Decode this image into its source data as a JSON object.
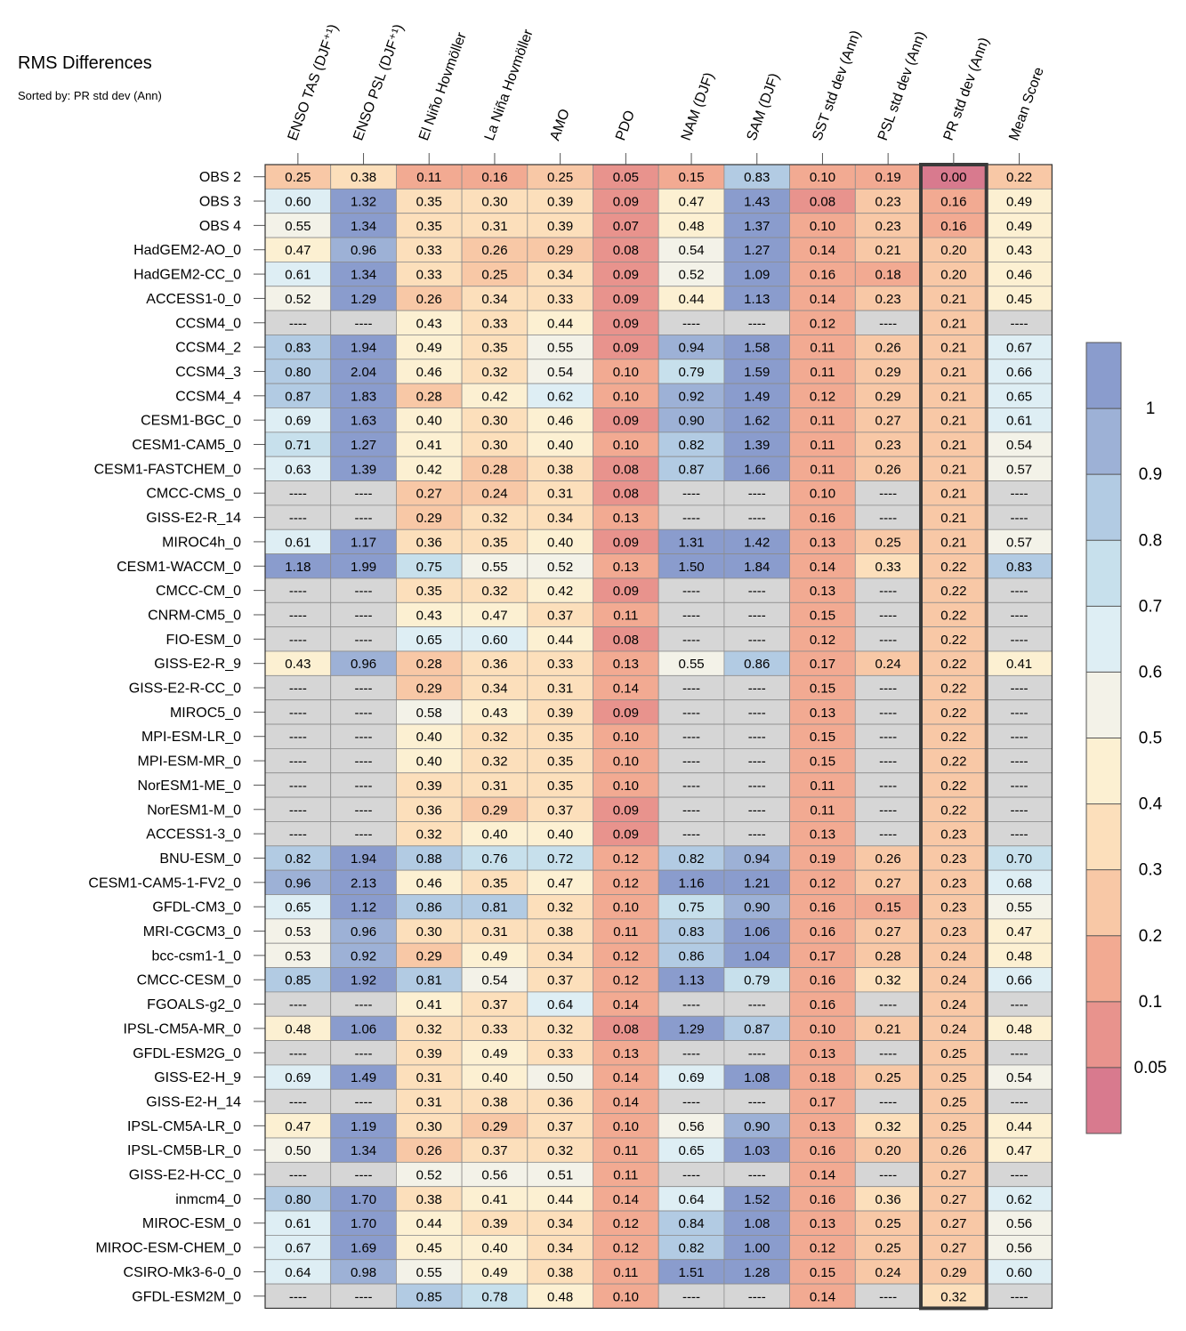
{
  "chart_data": {
    "type": "heatmap",
    "title": "RMS Differences",
    "subtitle": "Sorted by: PR std dev (Ann)",
    "highlighted_column": "PR std dev (Ann)",
    "missing_label": "----",
    "columns": [
      "ENSO TAS (DJF⁺¹)",
      "ENSO PSL (DJF⁺¹)",
      "El Niño Hovmöller",
      "La Niña Hovmöller",
      "AMO",
      "PDO",
      "NAM (DJF)",
      "SAM (DJF)",
      "SST std dev (Ann)",
      "PSL std dev (Ann)",
      "PR std dev (Ann)",
      "Mean Score"
    ],
    "rows": [
      "OBS 2",
      "OBS 3",
      "OBS 4",
      "HadGEM2-AO_0",
      "HadGEM2-CC_0",
      "ACCESS1-0_0",
      "CCSM4_0",
      "CCSM4_2",
      "CCSM4_3",
      "CCSM4_4",
      "CESM1-BGC_0",
      "CESM1-CAM5_0",
      "CESM1-FASTCHEM_0",
      "CMCC-CMS_0",
      "GISS-E2-R_14",
      "MIROC4h_0",
      "CESM1-WACCM_0",
      "CMCC-CM_0",
      "CNRM-CM5_0",
      "FIO-ESM_0",
      "GISS-E2-R_9",
      "GISS-E2-R-CC_0",
      "MIROC5_0",
      "MPI-ESM-LR_0",
      "MPI-ESM-MR_0",
      "NorESM1-ME_0",
      "NorESM1-M_0",
      "ACCESS1-3_0",
      "BNU-ESM_0",
      "CESM1-CAM5-1-FV2_0",
      "GFDL-CM3_0",
      "MRI-CGCM3_0",
      "bcc-csm1-1_0",
      "CMCC-CESM_0",
      "FGOALS-g2_0",
      "IPSL-CM5A-MR_0",
      "GFDL-ESM2G_0",
      "GISS-E2-H_9",
      "GISS-E2-H_14",
      "IPSL-CM5A-LR_0",
      "IPSL-CM5B-LR_0",
      "GISS-E2-H-CC_0",
      "inmcm4_0",
      "MIROC-ESM_0",
      "MIROC-ESM-CHEM_0",
      "CSIRO-Mk3-6-0_0",
      "GFDL-ESM2M_0"
    ],
    "values": [
      [
        0.25,
        0.38,
        0.11,
        0.16,
        0.25,
        0.05,
        0.15,
        0.83,
        0.1,
        0.19,
        0.0,
        0.22
      ],
      [
        0.6,
        1.32,
        0.35,
        0.3,
        0.39,
        0.09,
        0.47,
        1.43,
        0.08,
        0.23,
        0.16,
        0.49
      ],
      [
        0.55,
        1.34,
        0.35,
        0.31,
        0.39,
        0.07,
        0.48,
        1.37,
        0.1,
        0.23,
        0.16,
        0.49
      ],
      [
        0.47,
        0.96,
        0.33,
        0.26,
        0.29,
        0.08,
        0.54,
        1.27,
        0.14,
        0.21,
        0.2,
        0.43
      ],
      [
        0.61,
        1.34,
        0.33,
        0.25,
        0.34,
        0.09,
        0.52,
        1.09,
        0.16,
        0.18,
        0.2,
        0.46
      ],
      [
        0.52,
        1.29,
        0.26,
        0.34,
        0.33,
        0.09,
        0.44,
        1.13,
        0.14,
        0.23,
        0.21,
        0.45
      ],
      [
        null,
        null,
        0.43,
        0.33,
        0.44,
        0.09,
        null,
        null,
        0.12,
        null,
        0.21,
        null
      ],
      [
        0.83,
        1.94,
        0.49,
        0.35,
        0.55,
        0.09,
        0.94,
        1.58,
        0.11,
        0.26,
        0.21,
        0.67
      ],
      [
        0.8,
        2.04,
        0.46,
        0.32,
        0.54,
        0.1,
        0.79,
        1.59,
        0.11,
        0.29,
        0.21,
        0.66
      ],
      [
        0.87,
        1.83,
        0.28,
        0.42,
        0.62,
        0.1,
        0.92,
        1.49,
        0.12,
        0.29,
        0.21,
        0.65
      ],
      [
        0.69,
        1.63,
        0.4,
        0.3,
        0.46,
        0.09,
        0.9,
        1.62,
        0.11,
        0.27,
        0.21,
        0.61
      ],
      [
        0.71,
        1.27,
        0.41,
        0.3,
        0.4,
        0.1,
        0.82,
        1.39,
        0.11,
        0.23,
        0.21,
        0.54
      ],
      [
        0.63,
        1.39,
        0.42,
        0.28,
        0.38,
        0.08,
        0.87,
        1.66,
        0.11,
        0.26,
        0.21,
        0.57
      ],
      [
        null,
        null,
        0.27,
        0.24,
        0.31,
        0.08,
        null,
        null,
        0.1,
        null,
        0.21,
        null
      ],
      [
        null,
        null,
        0.29,
        0.32,
        0.34,
        0.13,
        null,
        null,
        0.16,
        null,
        0.21,
        null
      ],
      [
        0.61,
        1.17,
        0.36,
        0.35,
        0.4,
        0.09,
        1.31,
        1.42,
        0.13,
        0.25,
        0.21,
        0.57
      ],
      [
        1.18,
        1.99,
        0.75,
        0.55,
        0.52,
        0.13,
        1.5,
        1.84,
        0.14,
        0.33,
        0.22,
        0.83
      ],
      [
        null,
        null,
        0.35,
        0.32,
        0.42,
        0.09,
        null,
        null,
        0.13,
        null,
        0.22,
        null
      ],
      [
        null,
        null,
        0.43,
        0.47,
        0.37,
        0.11,
        null,
        null,
        0.15,
        null,
        0.22,
        null
      ],
      [
        null,
        null,
        0.65,
        0.6,
        0.44,
        0.08,
        null,
        null,
        0.12,
        null,
        0.22,
        null
      ],
      [
        0.43,
        0.96,
        0.28,
        0.36,
        0.33,
        0.13,
        0.55,
        0.86,
        0.17,
        0.24,
        0.22,
        0.41
      ],
      [
        null,
        null,
        0.29,
        0.34,
        0.31,
        0.14,
        null,
        null,
        0.15,
        null,
        0.22,
        null
      ],
      [
        null,
        null,
        0.58,
        0.43,
        0.39,
        0.09,
        null,
        null,
        0.13,
        null,
        0.22,
        null
      ],
      [
        null,
        null,
        0.4,
        0.32,
        0.35,
        0.1,
        null,
        null,
        0.15,
        null,
        0.22,
        null
      ],
      [
        null,
        null,
        0.4,
        0.32,
        0.35,
        0.1,
        null,
        null,
        0.15,
        null,
        0.22,
        null
      ],
      [
        null,
        null,
        0.39,
        0.31,
        0.35,
        0.1,
        null,
        null,
        0.11,
        null,
        0.22,
        null
      ],
      [
        null,
        null,
        0.36,
        0.29,
        0.37,
        0.09,
        null,
        null,
        0.11,
        null,
        0.22,
        null
      ],
      [
        null,
        null,
        0.32,
        0.4,
        0.4,
        0.09,
        null,
        null,
        0.13,
        null,
        0.23,
        null
      ],
      [
        0.82,
        1.94,
        0.88,
        0.76,
        0.72,
        0.12,
        0.82,
        0.94,
        0.19,
        0.26,
        0.23,
        0.7
      ],
      [
        0.96,
        2.13,
        0.46,
        0.35,
        0.47,
        0.12,
        1.16,
        1.21,
        0.12,
        0.27,
        0.23,
        0.68
      ],
      [
        0.65,
        1.12,
        0.86,
        0.81,
        0.32,
        0.1,
        0.75,
        0.9,
        0.16,
        0.15,
        0.23,
        0.55
      ],
      [
        0.53,
        0.96,
        0.3,
        0.31,
        0.38,
        0.11,
        0.83,
        1.06,
        0.16,
        0.27,
        0.23,
        0.47
      ],
      [
        0.53,
        0.92,
        0.29,
        0.49,
        0.34,
        0.12,
        0.86,
        1.04,
        0.17,
        0.28,
        0.24,
        0.48
      ],
      [
        0.85,
        1.92,
        0.81,
        0.54,
        0.37,
        0.12,
        1.13,
        0.79,
        0.16,
        0.32,
        0.24,
        0.66
      ],
      [
        null,
        null,
        0.41,
        0.37,
        0.64,
        0.14,
        null,
        null,
        0.16,
        null,
        0.24,
        null
      ],
      [
        0.48,
        1.06,
        0.32,
        0.33,
        0.32,
        0.08,
        1.29,
        0.87,
        0.1,
        0.21,
        0.24,
        0.48
      ],
      [
        null,
        null,
        0.39,
        0.49,
        0.33,
        0.13,
        null,
        null,
        0.13,
        null,
        0.25,
        null
      ],
      [
        0.69,
        1.49,
        0.31,
        0.4,
        0.5,
        0.14,
        0.69,
        1.08,
        0.18,
        0.25,
        0.25,
        0.54
      ],
      [
        null,
        null,
        0.31,
        0.38,
        0.36,
        0.14,
        null,
        null,
        0.17,
        null,
        0.25,
        null
      ],
      [
        0.47,
        1.19,
        0.3,
        0.29,
        0.37,
        0.1,
        0.56,
        0.9,
        0.13,
        0.32,
        0.25,
        0.44
      ],
      [
        0.5,
        1.34,
        0.26,
        0.37,
        0.32,
        0.11,
        0.65,
        1.03,
        0.16,
        0.2,
        0.26,
        0.47
      ],
      [
        null,
        null,
        0.52,
        0.56,
        0.51,
        0.11,
        null,
        null,
        0.14,
        null,
        0.27,
        null
      ],
      [
        0.8,
        1.7,
        0.38,
        0.41,
        0.44,
        0.14,
        0.64,
        1.52,
        0.16,
        0.36,
        0.27,
        0.62
      ],
      [
        0.61,
        1.7,
        0.44,
        0.39,
        0.34,
        0.12,
        0.84,
        1.08,
        0.13,
        0.25,
        0.27,
        0.56
      ],
      [
        0.67,
        1.69,
        0.45,
        0.4,
        0.34,
        0.12,
        0.82,
        1.0,
        0.12,
        0.25,
        0.27,
        0.56
      ],
      [
        0.64,
        0.98,
        0.55,
        0.49,
        0.38,
        0.11,
        1.51,
        1.28,
        0.15,
        0.24,
        0.29,
        0.6
      ],
      [
        null,
        null,
        0.85,
        0.78,
        0.48,
        0.1,
        null,
        null,
        0.14,
        null,
        0.32,
        null
      ]
    ],
    "colorbar": {
      "boundaries": [
        0,
        0.05,
        0.1,
        0.2,
        0.3,
        0.4,
        0.5,
        0.6,
        0.7,
        0.8,
        0.9,
        1,
        999
      ],
      "tick_labels": [
        "0.05",
        "0.1",
        "0.2",
        "0.3",
        "0.4",
        "0.5",
        "0.6",
        "0.7",
        "0.8",
        "0.9",
        "1"
      ],
      "colors": [
        "#d87a8e",
        "#e8938d",
        "#f2aa92",
        "#f8c8a6",
        "#fcdfbb",
        "#fcf0d2",
        "#f3f2e8",
        "#deeef4",
        "#c7e0ec",
        "#b2cbe3",
        "#9db1d6",
        "#8a9ccd"
      ],
      "missing_color": "#d6d6d6"
    }
  }
}
